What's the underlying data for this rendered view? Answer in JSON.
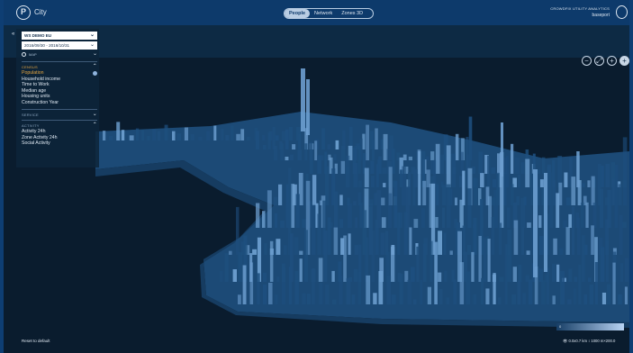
{
  "header": {
    "city_name": "City",
    "logo_glyph": "P",
    "tabs": [
      {
        "label": "People",
        "active": true
      },
      {
        "label": "Network",
        "active": false
      },
      {
        "label": "Zones 3D",
        "active": false
      }
    ],
    "brand_top": "CROWDFIX UTILITY ANALYTICS",
    "brand_bottom": "baseport"
  },
  "zoom": {
    "buttons": [
      "−",
      "⤢",
      "+",
      "+"
    ]
  },
  "panel": {
    "collapse_glyph": "«",
    "dataset_value": "WS DEMO EU",
    "date_range_value": "2016/09/30 - 2016/10/31",
    "map_label": "MAP",
    "sections": [
      {
        "title": "CENSUS",
        "expanded": true,
        "items": [
          {
            "label": "Population",
            "active": true
          },
          {
            "label": "Household income",
            "active": false
          },
          {
            "label": "Time to Work",
            "active": false
          },
          {
            "label": "Median age",
            "active": false
          },
          {
            "label": "Housing units",
            "active": false
          },
          {
            "label": "Construction Year",
            "active": false
          }
        ]
      },
      {
        "title": "SERVICE",
        "expanded": false,
        "items": []
      },
      {
        "title": "ACTIVITY",
        "expanded": true,
        "items": [
          {
            "label": "Activity 24h",
            "active": false
          },
          {
            "label": "Zone Activity 24h",
            "active": false
          },
          {
            "label": "Social Activity",
            "active": false
          }
        ]
      }
    ]
  },
  "footer": {
    "reset_label": "Reset to default",
    "legend_min": "0",
    "info_text": "👁 0.0x0.7 km  ↕ 1000 m×200.0"
  },
  "colors": {
    "accent": "#e6a640",
    "bar_top": "#6d9fd0",
    "bar_side": "#1e4f7e"
  }
}
